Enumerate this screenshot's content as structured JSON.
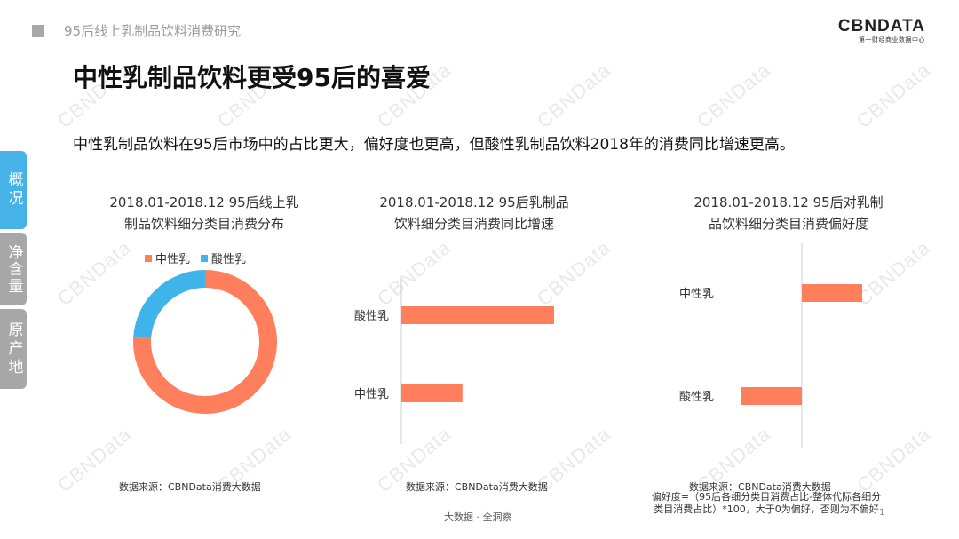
{
  "header": {
    "title": "95后线上乳制品饮料消费研究",
    "logo_main": "CBNDATA",
    "logo_sub": "第一财经商业数据中心"
  },
  "page_title": "中性乳制品饮料更受95后的喜爱",
  "subtitle": "中性乳制品饮料在95后市场中的占比更大，偏好度也更高，但酸性乳制品饮料2018年的消费同比增速更高。",
  "sidebar": {
    "items": [
      {
        "label": "概况",
        "active": true
      },
      {
        "label": "净含量",
        "active": false
      },
      {
        "label": "原产地",
        "active": false
      }
    ]
  },
  "watermark": "CBNData",
  "colors": {
    "orange": "#ff7f5c",
    "blue": "#3fb4ea",
    "active_tab": "#46b2e8",
    "inactive_tab": "#a7a7a7"
  },
  "chart_data": [
    {
      "type": "pie",
      "title": "2018.01-2018.12 95后线上乳制品饮料细分类目消费分布",
      "title_lines": [
        "2018.01-2018.12 95后线上乳",
        "制品饮料细分类目消费分布"
      ],
      "labels": [
        "中性乳",
        "酸性乳"
      ],
      "values": [
        76,
        24
      ],
      "colors": [
        "#ff7f5c",
        "#3fb4ea"
      ],
      "legend": "top",
      "donut": true
    },
    {
      "type": "bar",
      "orientation": "horizontal",
      "title": "2018.01-2018.12 95后乳制品饮料细分类目消费同比增速",
      "title_lines": [
        "2018.01-2018.12 95后乳制品",
        "饮料细分类目消费同比增速"
      ],
      "categories": [
        "酸性乳",
        "中性乳"
      ],
      "values": [
        100,
        40
      ],
      "color": "#ff7f5c",
      "grid": false
    },
    {
      "type": "bar",
      "orientation": "horizontal",
      "title": "2018.01-2018.12 95后对乳制品饮料细分类目消费偏好度",
      "title_lines": [
        "2018.01-2018.12 95后对乳制",
        "品饮料细分类目消费偏好度"
      ],
      "categories": [
        "中性乳",
        "酸性乳"
      ],
      "values": [
        10,
        -10
      ],
      "color": "#ff7f5c",
      "grid": false
    }
  ],
  "sources": {
    "s1": "数据来源：CBNData消费大数据",
    "s2": "数据来源：CBNData消费大数据",
    "s3": "数据来源：CBNData消费大数据",
    "note_line1": "偏好度=（95后各细分类目消费占比-整体代际各细分",
    "note_line2": "类目消费占比）*100，大于0为偏好，否则为不偏好"
  },
  "footer": {
    "text": "大数据 · 全洞察",
    "page": "1"
  }
}
